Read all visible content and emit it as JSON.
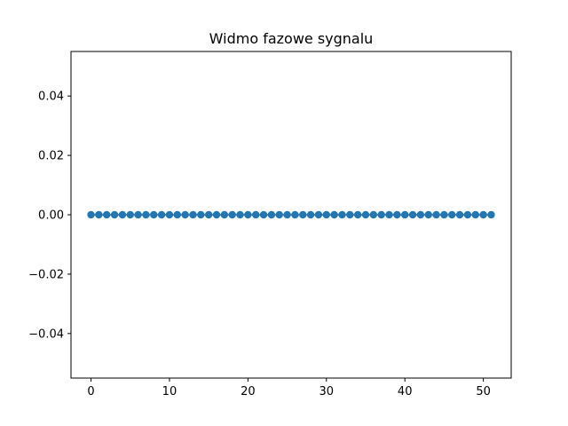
{
  "chart_data": {
    "type": "scatter",
    "title": "Widmo fazowe sygnalu",
    "xlabel": "",
    "ylabel": "",
    "xlim": [
      -2.55,
      53.55
    ],
    "ylim": [
      -0.055,
      0.055
    ],
    "x_ticks": [
      0,
      10,
      20,
      30,
      40,
      50
    ],
    "x_tick_labels": [
      "0",
      "10",
      "20",
      "30",
      "40",
      "50"
    ],
    "y_ticks": [
      0.04,
      0.02,
      0.0,
      -0.02,
      -0.04
    ],
    "y_tick_labels": [
      "0.04",
      "0.02",
      "0.00",
      "−0.02",
      "−0.04"
    ],
    "grid": false,
    "series": [
      {
        "marker_color": "#1f77b4",
        "stem_color": "#d62728",
        "x": [
          0,
          1,
          2,
          3,
          4,
          5,
          6,
          7,
          8,
          9,
          10,
          11,
          12,
          13,
          14,
          15,
          16,
          17,
          18,
          19,
          20,
          21,
          22,
          23,
          24,
          25,
          26,
          27,
          28,
          29,
          30,
          31,
          32,
          33,
          34,
          35,
          36,
          37,
          38,
          39,
          40,
          41,
          42,
          43,
          44,
          45,
          46,
          47,
          48,
          49,
          50,
          51
        ],
        "y": [
          0,
          0,
          0,
          0,
          0,
          0,
          0,
          0,
          0,
          0,
          0,
          0,
          0,
          0,
          0,
          0,
          0,
          0,
          0,
          0,
          0,
          0,
          0,
          0,
          0,
          0,
          0,
          0,
          0,
          0,
          0,
          0,
          0,
          0,
          0,
          0,
          0,
          0,
          0,
          0,
          0,
          0,
          0,
          0,
          0,
          0,
          0,
          0,
          0,
          0,
          0,
          0
        ]
      }
    ]
  }
}
